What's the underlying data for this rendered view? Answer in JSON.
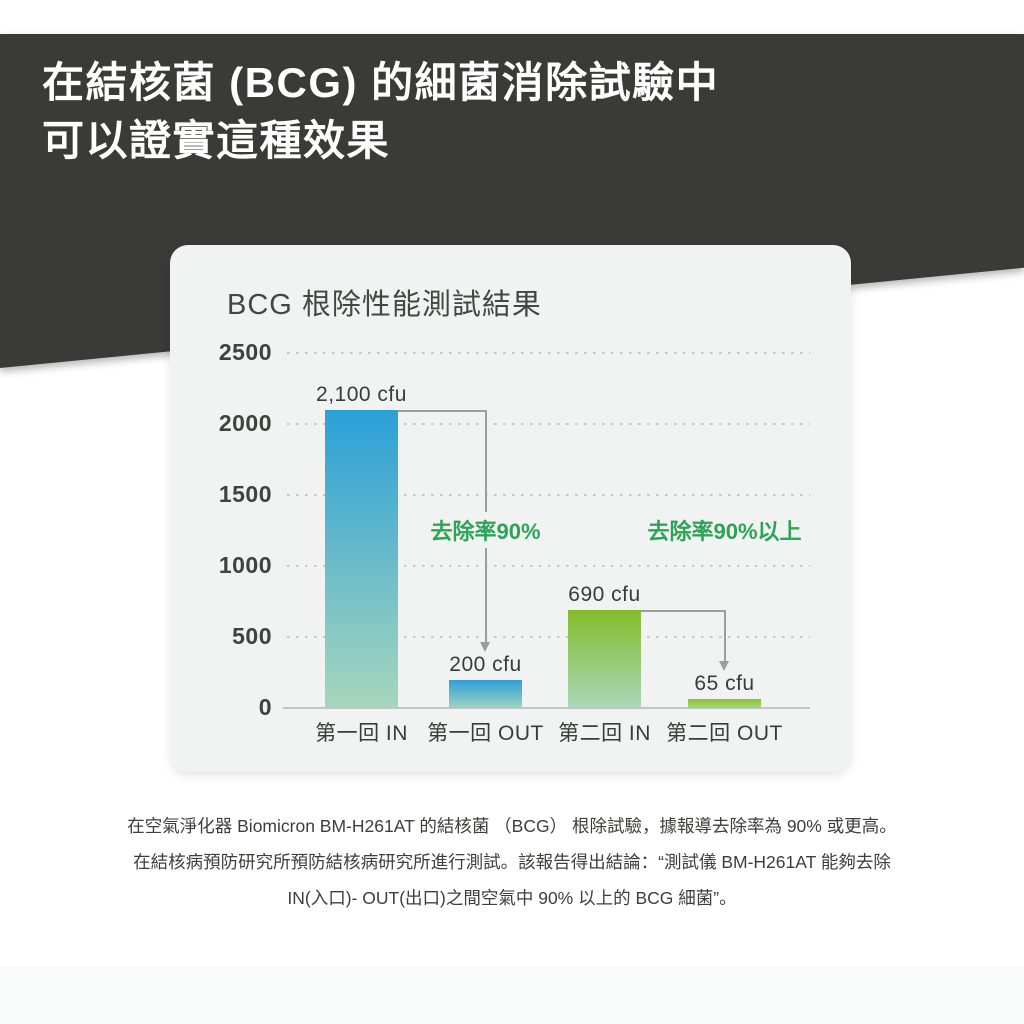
{
  "header": {
    "line1": "在結核菌 (BCG) 的細菌消除試驗中",
    "line2": "可以證實這種效果",
    "background": "#3a3a38",
    "text_color": "#ffffff"
  },
  "card": {
    "title": "BCG 根除性能測試結果",
    "background": "#f1f3f2"
  },
  "chart_data": {
    "type": "bar",
    "title": "BCG 根除性能測試結果",
    "categories": [
      "第一回 IN",
      "第一回 OUT",
      "第二回 IN",
      "第二回 OUT"
    ],
    "values": [
      2100,
      200,
      690,
      65
    ],
    "value_labels": [
      "2,100 cfu",
      "200 cfu",
      "690 cfu",
      "65 cfu"
    ],
    "unit": "cfu",
    "ylim": [
      0,
      2500
    ],
    "yticks": [
      0,
      500,
      1000,
      1500,
      2000,
      2500
    ],
    "grid": "horizontal-dotted",
    "legend": "none",
    "bar_gradients": [
      [
        "#2ba0d8",
        "#a7d6bc"
      ],
      [
        "#2f9fd6",
        "#9ed3c0"
      ],
      [
        "#83bc29",
        "#aad7ba"
      ],
      [
        "#8cc22d",
        "#a5d583"
      ]
    ],
    "annotations": [
      {
        "text": "去除率90%",
        "from_bar": 0,
        "to_bar": 1,
        "color": "#2da355"
      },
      {
        "text": "去除率90%以上",
        "from_bar": 2,
        "to_bar": 3,
        "color": "#2da355"
      }
    ]
  },
  "footer": {
    "lines": [
      "在空氣淨化器 Biomicron BM-H261AT 的結核菌 （BCG） 根除試驗，據報導去除率為 90% 或更高。",
      "在結核病預防研究所預防結核病研究所進行測試。該報告得出結論：“測試儀 BM-H261AT 能夠去除",
      "IN(入口)- OUT(出口)之間空氣中 90% 以上的 BCG 細菌”。"
    ]
  },
  "colors": {
    "axis_text": "#414140",
    "grid_dots": "#c7c9c7",
    "baseline": "#c3c5c4",
    "arrow": "#9d9d9b",
    "annotation_green": "#2da355",
    "value_label": "#3b3b39",
    "header_band": "#3a3a38"
  }
}
